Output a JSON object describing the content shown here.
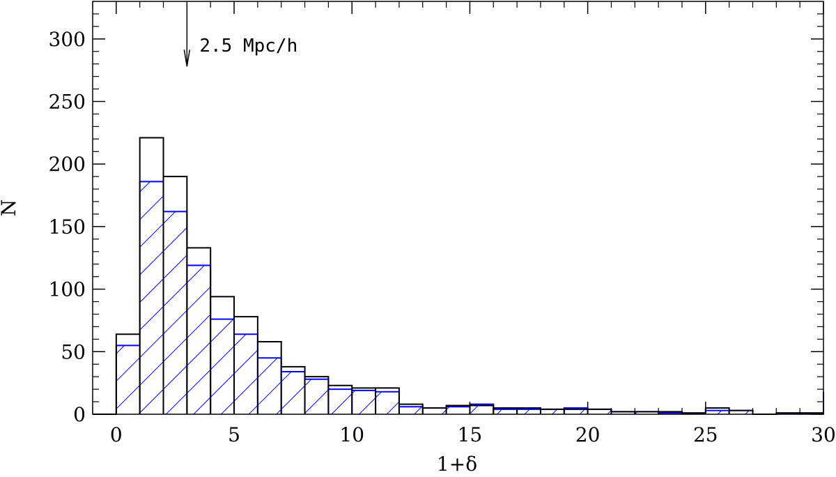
{
  "chart_data": {
    "type": "bar",
    "xlabel": "1+δ",
    "ylabel": "N",
    "xlim": [
      -1,
      30
    ],
    "ylim": [
      0,
      330
    ],
    "grid": false,
    "bin_width": 1,
    "x_ticks": [
      "0",
      "5",
      "10",
      "15",
      "20",
      "25",
      "30"
    ],
    "y_ticks": [
      "0",
      "50",
      "100",
      "150",
      "200",
      "250",
      "300"
    ],
    "x_tick_values": [
      0,
      5,
      10,
      15,
      20,
      25,
      30
    ],
    "y_tick_values": [
      0,
      50,
      100,
      150,
      200,
      250,
      300
    ],
    "bin_edges": [
      0,
      1,
      2,
      3,
      4,
      5,
      6,
      7,
      8,
      9,
      10,
      11,
      12,
      13,
      14,
      15,
      16,
      17,
      18,
      19,
      20,
      21,
      22,
      23,
      24,
      25,
      26,
      27,
      28,
      29,
      30
    ],
    "series": [
      {
        "style": "outline",
        "color": "#000000",
        "values": [
          64,
          221,
          190,
          133,
          94,
          78,
          58,
          38,
          30,
          23,
          21,
          21,
          8,
          5,
          7,
          7,
          5,
          5,
          4,
          4,
          4,
          2,
          2,
          2,
          1,
          5,
          3,
          0,
          1,
          1
        ]
      },
      {
        "style": "hatched",
        "color": "#0000ff",
        "values": [
          55,
          186,
          162,
          119,
          76,
          64,
          45,
          34,
          28,
          20,
          19,
          18,
          6,
          5,
          6,
          8,
          4,
          4,
          4,
          5,
          4,
          2,
          2,
          1,
          1,
          3,
          3,
          0,
          1,
          1
        ]
      }
    ],
    "annotations": [
      {
        "text": "2.5 Mpc/h",
        "arrow_x": 3,
        "arrow_y_top": 330,
        "arrow_y_tip": 278
      }
    ]
  }
}
